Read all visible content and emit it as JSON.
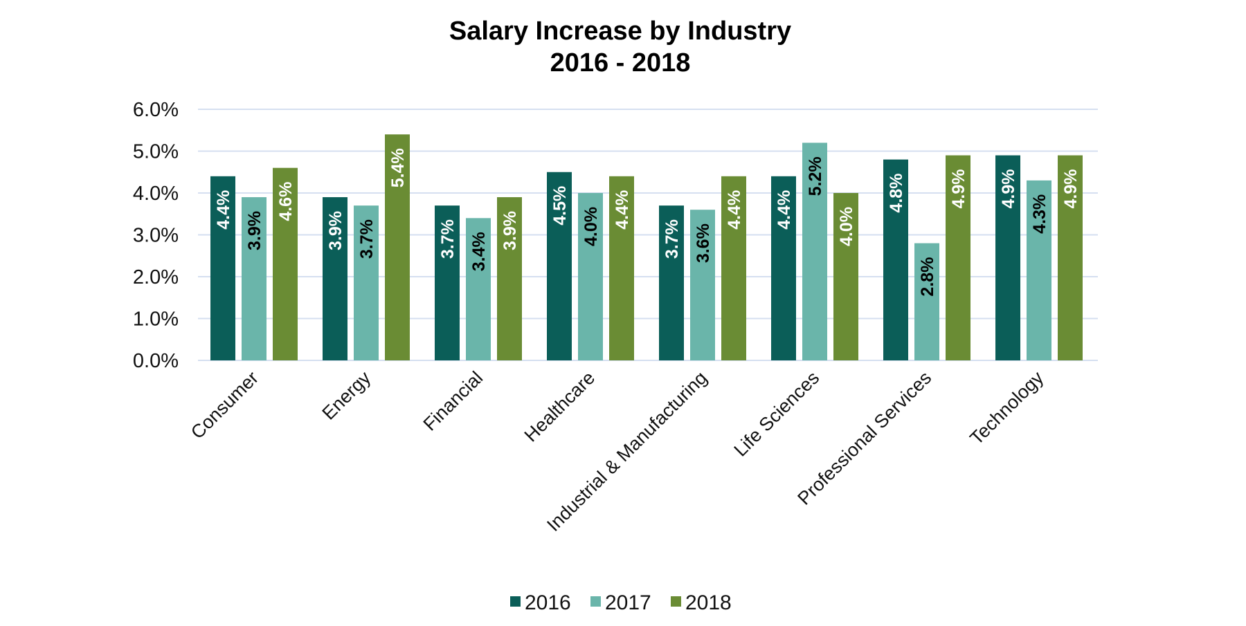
{
  "chart_data": {
    "type": "bar",
    "title": [
      "Salary Increase by Industry",
      "2016 - 2018"
    ],
    "xlabel": "",
    "ylabel": "",
    "ylim": [
      0,
      6
    ],
    "yticks": [
      "0.0%",
      "1.0%",
      "2.0%",
      "3.0%",
      "4.0%",
      "5.0%",
      "6.0%"
    ],
    "grid": true,
    "legend_position": "bottom",
    "categories": [
      "Consumer",
      "Energy",
      "Financial",
      "Healthcare",
      "Industrial & Manufacturing",
      "Life Sciences",
      "Professional Services",
      "Technology"
    ],
    "series": [
      {
        "name": "2016",
        "color": "#0b5e58",
        "label_color": "#ffffff",
        "values": [
          4.4,
          3.9,
          3.7,
          4.5,
          3.7,
          4.4,
          4.8,
          4.9
        ]
      },
      {
        "name": "2017",
        "color": "#6ab5aa",
        "label_color": "#000000",
        "values": [
          3.9,
          3.7,
          3.4,
          4.0,
          3.6,
          5.2,
          2.8,
          4.3
        ]
      },
      {
        "name": "2018",
        "color": "#6a8c34",
        "label_color": "#ffffff",
        "values": [
          4.6,
          5.4,
          3.9,
          4.4,
          4.4,
          4.0,
          4.9,
          4.9
        ]
      }
    ],
    "data_labels": [
      [
        "4.4%",
        "3.9%",
        "3.7%",
        "4.5%",
        "3.7%",
        "4.4%",
        "4.8%",
        "4.9%"
      ],
      [
        "3.9%",
        "3.7%",
        "3.4%",
        "4.0%",
        "3.6%",
        "5.2%",
        "2.8%",
        "4.3%"
      ],
      [
        "4.6%",
        "5.4%",
        "3.9%",
        "4.4%",
        "4.4%",
        "4.0%",
        "4.9%",
        "4.9%"
      ]
    ],
    "gridline_color": "#d5dff0"
  }
}
